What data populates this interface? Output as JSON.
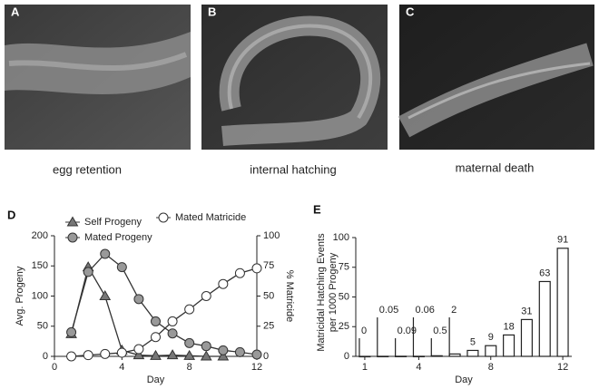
{
  "photos": [
    {
      "letter": "A",
      "caption": "egg retention"
    },
    {
      "letter": "B",
      "caption": "internal hatching"
    },
    {
      "letter": "C",
      "caption": "maternal death"
    }
  ],
  "chart_data": [
    {
      "type": "line",
      "panel": "D",
      "xlabel": "Day",
      "ylabel": "Avg. Progeny",
      "y2label": "% Matricide",
      "x": [
        1,
        2,
        3,
        4,
        5,
        6,
        7,
        8,
        9,
        10,
        11,
        12
      ],
      "xlim": [
        0,
        12
      ],
      "xticks": [
        0,
        4,
        8,
        12
      ],
      "ylim": [
        0,
        200
      ],
      "yticks": [
        0,
        50,
        100,
        150,
        200
      ],
      "y2lim": [
        0,
        100
      ],
      "y2ticks": [
        0,
        25,
        50,
        75,
        100
      ],
      "series": [
        {
          "name": "Self Progeny",
          "color": "#777777",
          "marker": "triangle",
          "values": [
            37,
            148,
            100,
            10,
            2,
            1,
            2,
            1,
            0,
            0,
            null,
            null
          ]
        },
        {
          "name": "Mated Progeny",
          "color": "#999999",
          "marker": "circle",
          "values": [
            40,
            140,
            170,
            148,
            95,
            58,
            38,
            22,
            17,
            10,
            7,
            3
          ]
        },
        {
          "name": "Mated Matricide",
          "color": "#ffffff",
          "marker": "circle",
          "axis": "y2",
          "values": [
            0,
            1,
            2,
            3,
            6,
            16,
            29,
            39,
            50,
            60,
            69,
            73
          ]
        }
      ]
    },
    {
      "type": "bar",
      "panel": "E",
      "xlabel": "Day",
      "ylabel": [
        "Matricidal Hatching Events",
        "per 1000 Progeny"
      ],
      "x": [
        1,
        2,
        3,
        4,
        5,
        6,
        7,
        8,
        9,
        10,
        11,
        12
      ],
      "values": [
        0,
        0.05,
        0.09,
        0.06,
        0.5,
        2,
        5,
        9,
        18,
        31,
        63,
        91
      ],
      "color": "#ffffff",
      "xlim": [
        0.5,
        12.5
      ],
      "xticks": [
        1,
        4,
        8,
        12
      ],
      "ylim": [
        0,
        100
      ],
      "yticks": [
        0,
        25,
        50,
        75,
        100
      ]
    }
  ]
}
